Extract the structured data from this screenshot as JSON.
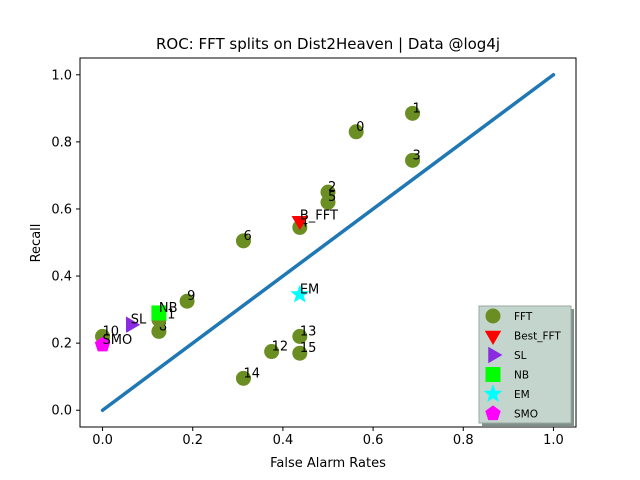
{
  "chart_data": {
    "type": "scatter",
    "title": "ROC: FFT splits on Dist2Heaven  |  Data @log4j",
    "xlabel": "False Alarm Rates",
    "ylabel": "Recall",
    "xlim": [
      -0.05,
      1.05
    ],
    "ylim": [
      -0.05,
      1.05
    ],
    "xticks": [
      "0.0",
      "0.2",
      "0.4",
      "0.6",
      "0.8",
      "1.0"
    ],
    "yticks": [
      "0.0",
      "0.2",
      "0.4",
      "0.6",
      "0.8",
      "1.0"
    ],
    "xtick_values": [
      0.0,
      0.2,
      0.4,
      0.6,
      0.8,
      1.0
    ],
    "ytick_values": [
      0.0,
      0.2,
      0.4,
      0.6,
      0.8,
      1.0
    ],
    "grid": false,
    "legend_placement": "bottom-right",
    "diagonal": {
      "from": [
        0,
        0
      ],
      "to": [
        1,
        1
      ],
      "color": "#1f77b4"
    },
    "series": [
      {
        "name": "FFT",
        "marker": "circle",
        "color": "#6b8e23",
        "points": [
          {
            "label": "0",
            "x": 0.5625,
            "y": 0.83
          },
          {
            "label": "1",
            "x": 0.6875,
            "y": 0.885
          },
          {
            "label": "2",
            "x": 0.5,
            "y": 0.65
          },
          {
            "label": "3",
            "x": 0.6875,
            "y": 0.745
          },
          {
            "label": "4",
            "x": 0.4375,
            "y": 0.545
          },
          {
            "label": "5",
            "x": 0.5,
            "y": 0.62
          },
          {
            "label": "6",
            "x": 0.3125,
            "y": 0.505
          },
          {
            "label": "8",
            "x": 0.125,
            "y": 0.235
          },
          {
            "label": "9",
            "x": 0.1875,
            "y": 0.325
          },
          {
            "label": "10",
            "x": 0.0,
            "y": 0.22
          },
          {
            "label": "11",
            "x": 0.125,
            "y": 0.27
          },
          {
            "label": "12",
            "x": 0.375,
            "y": 0.175
          },
          {
            "label": "13",
            "x": 0.4375,
            "y": 0.22
          },
          {
            "label": "14",
            "x": 0.3125,
            "y": 0.095
          },
          {
            "label": "15",
            "x": 0.4375,
            "y": 0.17
          }
        ]
      },
      {
        "name": "Best_FFT",
        "marker": "triangle-down",
        "color": "#ff0000",
        "points": [
          {
            "label": "B_FFT",
            "x": 0.4375,
            "y": 0.565
          }
        ]
      },
      {
        "name": "SL",
        "marker": "triangle-right",
        "color": "#8a2be2",
        "points": [
          {
            "label": "SL",
            "x": 0.0625,
            "y": 0.255
          }
        ]
      },
      {
        "name": "NB",
        "marker": "square",
        "color": "#00ff00",
        "points": [
          {
            "label": "NB",
            "x": 0.125,
            "y": 0.29
          }
        ]
      },
      {
        "name": "EM",
        "marker": "star",
        "color": "#00ffff",
        "points": [
          {
            "label": "EM",
            "x": 0.4375,
            "y": 0.345
          }
        ]
      },
      {
        "name": "SMO",
        "marker": "pentagon",
        "color": "#ff00ff",
        "points": [
          {
            "label": "SMO",
            "x": 0.0,
            "y": 0.195
          }
        ]
      }
    ]
  }
}
